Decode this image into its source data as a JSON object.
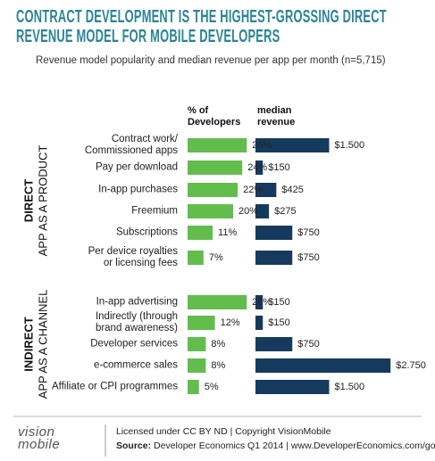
{
  "chart_data": {
    "type": "bar",
    "title": "CONTRACT DEVELOPMENT IS THE HIGHEST-GROSSING DIRECT\nREVENUE MODEL FOR MOBILE DEVELOPERS",
    "subtitle": "Revenue model popularity and median revenue per app per month (n=5,715)",
    "columns": [
      {
        "name": "% of\nDevelopers",
        "color": "#62bd4d"
      },
      {
        "name": "median\nrevenue",
        "color": "#163a5e"
      }
    ],
    "groups": [
      {
        "name": "DIRECT",
        "label": "APP AS A PRODUCT",
        "categories": [
          "Contract work/\nCommissioned apps",
          "Pay per download",
          "In-app purchases",
          "Freemium",
          "Subscriptions",
          "Per device royalties\nor licensing fees"
        ],
        "values": [
          [
            26,
            24,
            22,
            20,
            11,
            7
          ],
          [
            1500,
            150,
            425,
            275,
            750,
            750
          ]
        ],
        "value_labels": [
          [
            "26%",
            "24%",
            "22%",
            "20%",
            "11%",
            "7%"
          ],
          [
            "$1.500",
            "$150",
            "$425",
            "$275",
            "$750",
            "$750"
          ]
        ]
      },
      {
        "name": "INDIRECT",
        "label": "APP AS A CHANNEL",
        "categories": [
          "In-app advertising",
          "Indirectly (through\nbrand awareness)",
          "Developer services",
          "e-commerce sales",
          "Affiliate or CPI programmes"
        ],
        "values": [
          [
            26,
            12,
            8,
            8,
            5
          ],
          [
            150,
            150,
            750,
            2750,
            1500
          ]
        ],
        "value_labels": [
          [
            "26%",
            "12%",
            "8%",
            "8%",
            "5%"
          ],
          [
            "$150",
            "$150",
            "$750",
            "$2.750",
            "$1.500"
          ]
        ]
      }
    ],
    "logo": "vision\nmobile",
    "license": "Licensed under CC BY ND | Copyright VisionMobile",
    "source_label": "Source:",
    "source": "Developer Economics Q1 2014 | www.DeveloperEconomics.com/go"
  }
}
